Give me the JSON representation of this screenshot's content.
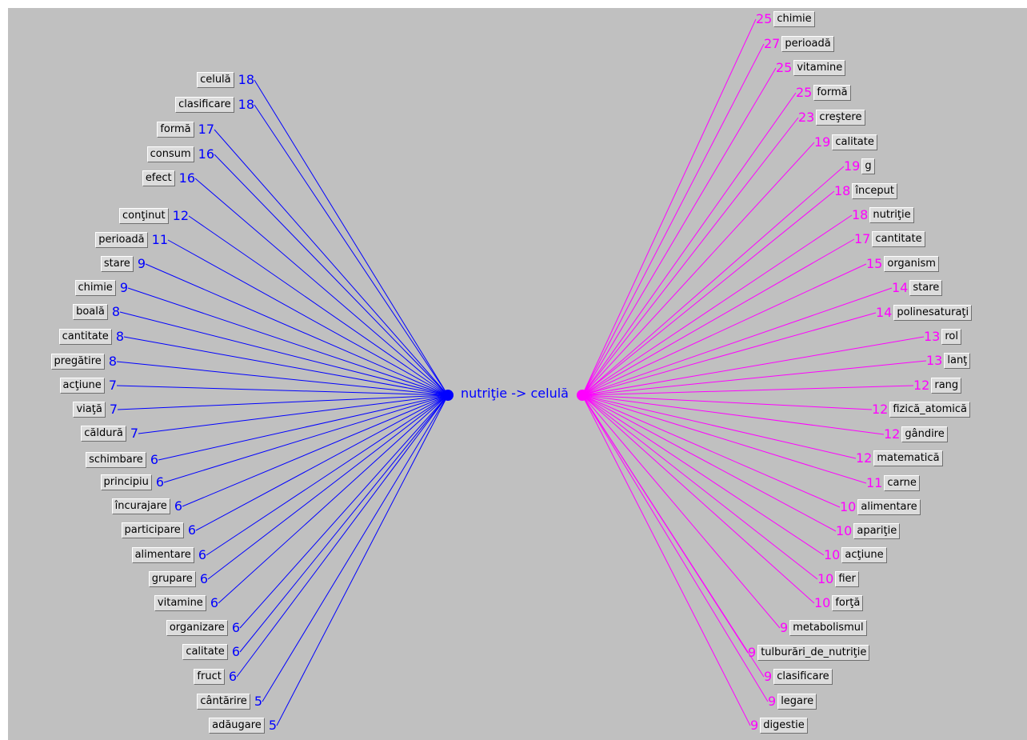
{
  "center": {
    "label": "nutriţie -> celulă"
  },
  "colors": {
    "left": "#0000ff",
    "right": "#ff00ff",
    "background": "#c0c0c0"
  },
  "left_items": [
    {
      "word": "celulă",
      "score": "18"
    },
    {
      "word": "clasificare",
      "score": "18"
    },
    {
      "word": "formă",
      "score": "17"
    },
    {
      "word": "consum",
      "score": "16"
    },
    {
      "word": "efect",
      "score": "16"
    },
    {
      "word": "conţinut",
      "score": "12"
    },
    {
      "word": "perioadă",
      "score": "11"
    },
    {
      "word": "stare",
      "score": "9"
    },
    {
      "word": "chimie",
      "score": "9"
    },
    {
      "word": "boală",
      "score": "8"
    },
    {
      "word": "cantitate",
      "score": "8"
    },
    {
      "word": "pregătire",
      "score": "8"
    },
    {
      "word": "acţiune",
      "score": "7"
    },
    {
      "word": "viaţă",
      "score": "7"
    },
    {
      "word": "căldură",
      "score": "7"
    },
    {
      "word": "schimbare",
      "score": "6"
    },
    {
      "word": "principiu",
      "score": "6"
    },
    {
      "word": "încurajare",
      "score": "6"
    },
    {
      "word": "participare",
      "score": "6"
    },
    {
      "word": "alimentare",
      "score": "6"
    },
    {
      "word": "grupare",
      "score": "6"
    },
    {
      "word": "vitamine",
      "score": "6"
    },
    {
      "word": "organizare",
      "score": "6"
    },
    {
      "word": "calitate",
      "score": "6"
    },
    {
      "word": "fruct",
      "score": "6"
    },
    {
      "word": "cântărire",
      "score": "5"
    },
    {
      "word": "adăugare",
      "score": "5"
    }
  ],
  "right_items": [
    {
      "word": "chimie",
      "score": "25"
    },
    {
      "word": "perioadă",
      "score": "27"
    },
    {
      "word": "vitamine",
      "score": "25"
    },
    {
      "word": "formă",
      "score": "25"
    },
    {
      "word": "creştere",
      "score": "23"
    },
    {
      "word": "calitate",
      "score": "19"
    },
    {
      "word": "g",
      "score": "19"
    },
    {
      "word": "început",
      "score": "18"
    },
    {
      "word": "nutriţie",
      "score": "18"
    },
    {
      "word": "cantitate",
      "score": "17"
    },
    {
      "word": "organism",
      "score": "15"
    },
    {
      "word": "stare",
      "score": "14"
    },
    {
      "word": "polinesaturaţi",
      "score": "14"
    },
    {
      "word": "rol",
      "score": "13"
    },
    {
      "word": "lanţ",
      "score": "13"
    },
    {
      "word": "rang",
      "score": "12"
    },
    {
      "word": "fizică_atomică",
      "score": "12"
    },
    {
      "word": "gândire",
      "score": "12"
    },
    {
      "word": "matematică",
      "score": "12"
    },
    {
      "word": "carne",
      "score": "11"
    },
    {
      "word": "alimentare",
      "score": "10"
    },
    {
      "word": "apariţie",
      "score": "10"
    },
    {
      "word": "acţiune",
      "score": "10"
    },
    {
      "word": "fier",
      "score": "10"
    },
    {
      "word": "forţă",
      "score": "10"
    },
    {
      "word": "metabolismul",
      "score": "9"
    },
    {
      "word": "tulburări_de_nutriţie",
      "score": "9"
    },
    {
      "word": "clasificare",
      "score": "9"
    },
    {
      "word": "legare",
      "score": "9"
    },
    {
      "word": "digestie",
      "score": "9"
    }
  ]
}
